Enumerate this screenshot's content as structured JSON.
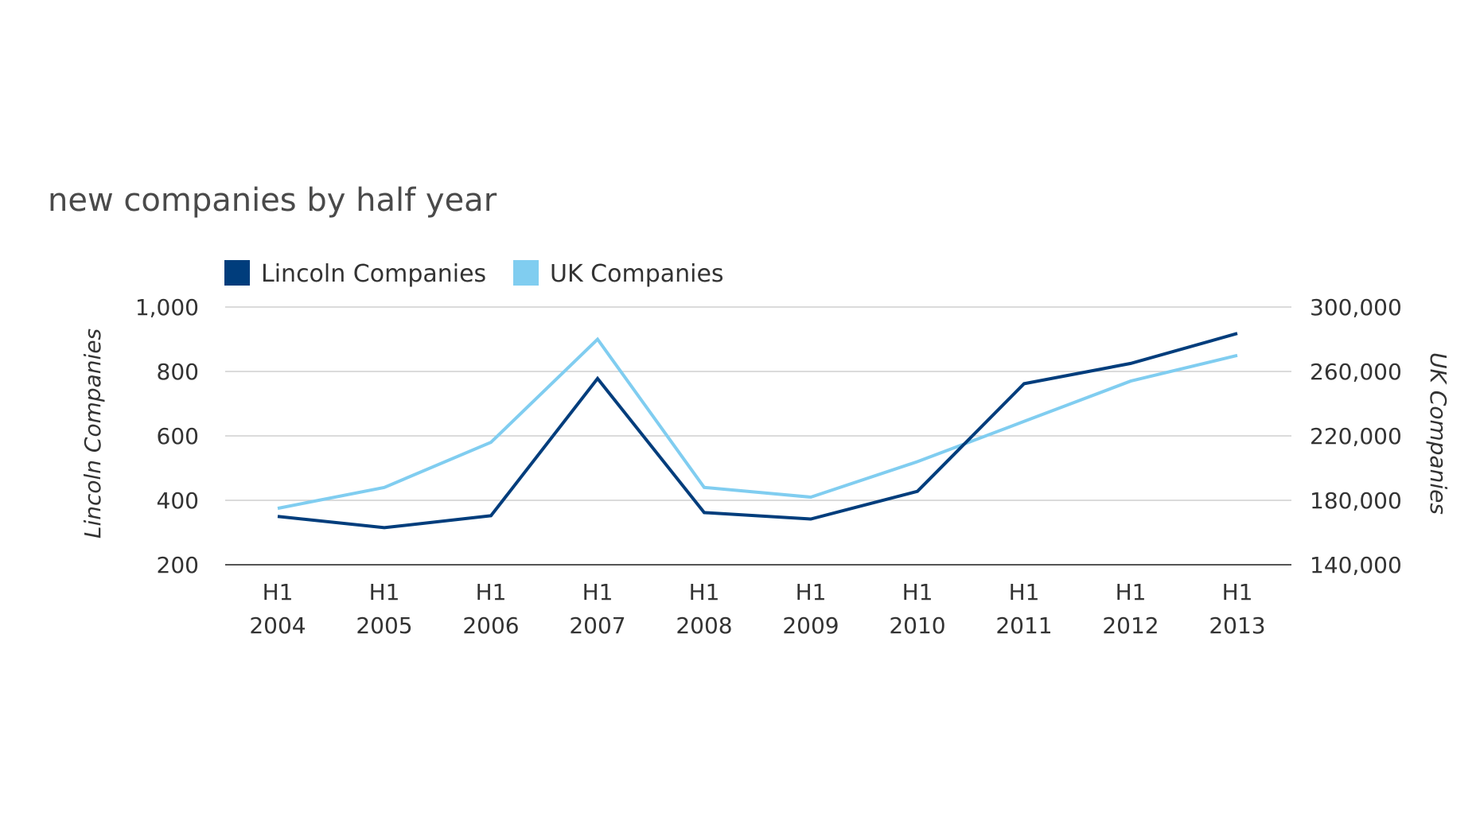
{
  "chart_data": {
    "type": "line",
    "title": "new companies by half year",
    "categories": [
      [
        "H1",
        "2004"
      ],
      [
        "H1",
        "2005"
      ],
      [
        "H1",
        "2006"
      ],
      [
        "H1",
        "2007"
      ],
      [
        "H1",
        "2008"
      ],
      [
        "H1",
        "2009"
      ],
      [
        "H1",
        "2010"
      ],
      [
        "H1",
        "2011"
      ],
      [
        "H1",
        "2012"
      ],
      [
        "H1",
        "2013"
      ]
    ],
    "ylabel_left": "Lincoln Companies",
    "ylabel_right": "UK Companies",
    "ylim_left": [
      200,
      1000
    ],
    "ylim_right": [
      140000,
      300000
    ],
    "yticks_left": [
      "1,000",
      "800",
      "600",
      "400",
      "200"
    ],
    "yticks_left_values": [
      1000,
      800,
      600,
      400,
      200
    ],
    "yticks_right": [
      "300,000",
      "260,000",
      "220,000",
      "180,000",
      "140,000"
    ],
    "yticks_right_values": [
      300000,
      260000,
      220000,
      180000,
      140000
    ],
    "grid": true,
    "legend_position": "top-left",
    "series": [
      {
        "name": "Lincoln Companies",
        "axis": "left",
        "color": "#003d7c",
        "values": [
          350,
          315,
          352,
          778,
          362,
          342,
          428,
          762,
          825,
          918
        ]
      },
      {
        "name": "UK Companies",
        "axis": "right",
        "color": "#80cdf0",
        "values": [
          175000,
          188000,
          216000,
          280000,
          188000,
          182000,
          204000,
          229000,
          254000,
          270000
        ]
      }
    ]
  }
}
